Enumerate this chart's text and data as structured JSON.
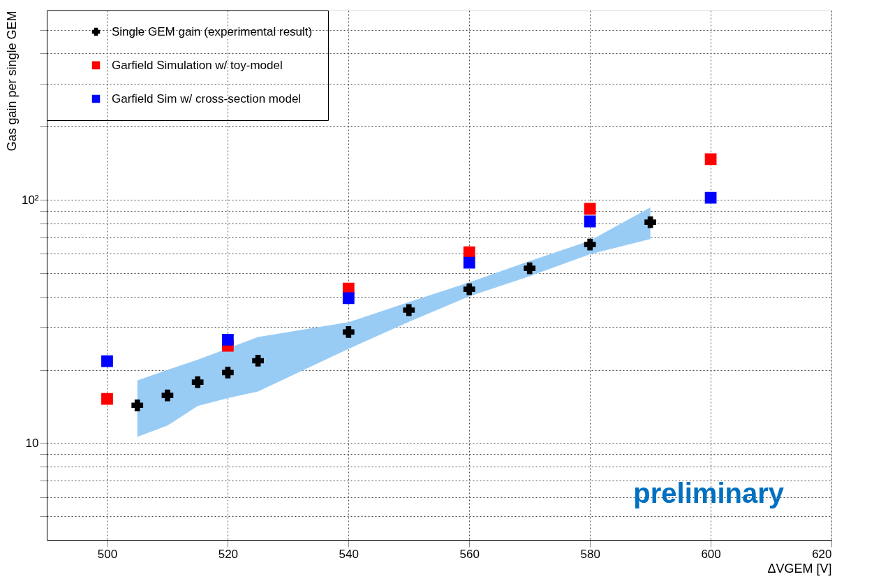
{
  "chart_data": {
    "type": "scatter",
    "xlabel": "ΔVGEM [V]",
    "ylabel": "Gas gain per single GEM",
    "log": "y",
    "grid": true,
    "legend": "top left",
    "xlim": [
      490,
      620
    ],
    "xticks": [
      500,
      520,
      540,
      560,
      580,
      600,
      620
    ],
    "ylim": [
      4,
      600
    ],
    "yticks": [
      {
        "value": 5,
        "label": null
      },
      {
        "value": 6,
        "label": null
      },
      {
        "value": 7,
        "label": null
      },
      {
        "value": 8,
        "label": null
      },
      {
        "value": 9,
        "label": null
      },
      {
        "value": 10,
        "label": "10"
      },
      {
        "value": 20,
        "label": null
      },
      {
        "value": 30,
        "label": null
      },
      {
        "value": 40,
        "label": null
      },
      {
        "value": 50,
        "label": null
      },
      {
        "value": 60,
        "label": null
      },
      {
        "value": 70,
        "label": null
      },
      {
        "value": 80,
        "label": null
      },
      {
        "value": 90,
        "label": null
      },
      {
        "value": 100,
        "label": "10²"
      },
      {
        "value": 200,
        "label": null
      },
      {
        "value": 300,
        "label": null
      },
      {
        "value": 400,
        "label": null
      },
      {
        "value": 500,
        "label": null
      }
    ],
    "series": [
      {
        "name": "Single GEM gain (experimental result)",
        "color": "#000000",
        "marker": "cross",
        "x": [
          505,
          510,
          515,
          520,
          525,
          540,
          550,
          560,
          570,
          580,
          590
        ],
        "values": [
          14.3,
          15.7,
          17.8,
          19.5,
          21.8,
          28.6,
          35.2,
          42.9,
          52.3,
          65.5,
          80.9
        ],
        "lower": [
          10.6,
          11.8,
          14.2,
          15.3,
          16.3,
          24.4,
          31.5,
          40.1,
          48.5,
          59.7,
          69
        ],
        "upper": [
          18.1,
          20,
          22,
          24.5,
          27.3,
          31.4,
          38,
          45.8,
          56,
          68,
          93
        ]
      },
      {
        "name": "Garfield Simulation w/ toy-model",
        "color": "#ff0000",
        "marker": "square",
        "x": [
          500,
          520,
          540,
          560,
          580,
          600
        ],
        "values": [
          15.2,
          25.1,
          43.2,
          60.9,
          91.8,
          147
        ]
      },
      {
        "name": "Garfield Sim w/ cross-section model",
        "color": "#0000ff",
        "marker": "square",
        "x": [
          500,
          520,
          540,
          560,
          580,
          600
        ],
        "values": [
          21.7,
          26.6,
          39.4,
          55.1,
          81.5,
          102
        ]
      }
    ],
    "annotations": [
      "preliminary"
    ]
  }
}
